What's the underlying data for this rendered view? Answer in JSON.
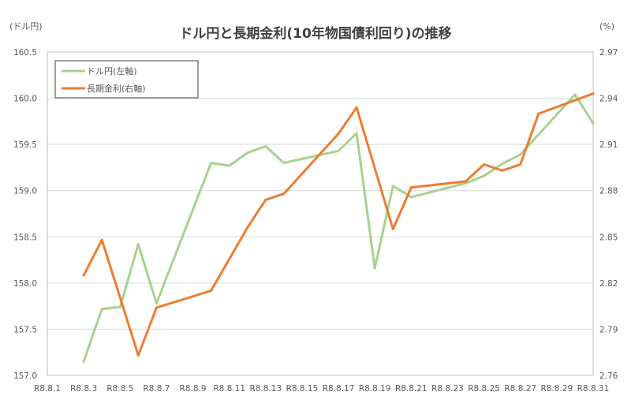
{
  "chart_data": {
    "type": "line",
    "title": "ドル円と長期金利(10年物国債利回り)の推移",
    "left_unit": "(ドル円)",
    "right_unit": "(%)",
    "left_axis": {
      "min": 157.0,
      "max": 160.5,
      "step": 0.5,
      "ticks": [
        "157.0",
        "157.5",
        "158.0",
        "158.5",
        "159.0",
        "159.5",
        "160.0",
        "160.5"
      ]
    },
    "right_axis": {
      "min": 2.76,
      "max": 2.97,
      "step": 0.03,
      "ticks": [
        "2.76",
        "2.79",
        "2.82",
        "2.85",
        "2.88",
        "2.91",
        "2.94",
        "2.97"
      ]
    },
    "x_axis": {
      "min": 1,
      "max": 31,
      "ticks": [
        {
          "day": 1,
          "label": "R8.8.1"
        },
        {
          "day": 3,
          "label": "R8.8.3"
        },
        {
          "day": 5,
          "label": "R8.8.5"
        },
        {
          "day": 7,
          "label": "R8.8.7"
        },
        {
          "day": 9,
          "label": "R8.8.9"
        },
        {
          "day": 11,
          "label": "R8.8.11"
        },
        {
          "day": 13,
          "label": "R8.8.13"
        },
        {
          "day": 15,
          "label": "R8.8.15"
        },
        {
          "day": 17,
          "label": "R8.8.17"
        },
        {
          "day": 19,
          "label": "R8.8.19"
        },
        {
          "day": 21,
          "label": "R8.8.21"
        },
        {
          "day": 23,
          "label": "R8.8.23"
        },
        {
          "day": 25,
          "label": "R8.8.25"
        },
        {
          "day": 27,
          "label": "R8.8.27"
        },
        {
          "day": 29,
          "label": "R8.8.29"
        },
        {
          "day": 31,
          "label": "R8.8.31"
        }
      ]
    },
    "grid": true,
    "legend_position": "top-left",
    "series": [
      {
        "name": "ドル円(左軸)",
        "axis": "left",
        "color": "#a9d18e",
        "x": [
          3,
          4,
          5,
          6,
          7,
          10,
          11,
          12,
          13,
          14,
          17,
          18,
          19,
          20,
          21,
          24,
          25,
          26,
          27,
          30,
          31
        ],
        "values": [
          157.15,
          157.72,
          157.74,
          158.42,
          157.78,
          159.3,
          159.27,
          159.41,
          159.48,
          159.3,
          159.43,
          159.62,
          158.16,
          159.05,
          158.93,
          159.08,
          159.16,
          159.29,
          159.39,
          160.04,
          159.73
        ]
      },
      {
        "name": "長期金利(右軸)",
        "axis": "right",
        "color": "#ed7d31",
        "x": [
          3,
          4,
          6,
          7,
          10,
          12,
          13,
          14,
          17,
          18,
          20,
          21,
          24,
          25,
          26,
          27,
          28,
          31
        ],
        "values": [
          2.825,
          2.848,
          2.773,
          2.804,
          2.815,
          2.856,
          2.874,
          2.878,
          2.917,
          2.934,
          2.855,
          2.882,
          2.886,
          2.897,
          2.893,
          2.897,
          2.93,
          2.943
        ]
      }
    ]
  }
}
